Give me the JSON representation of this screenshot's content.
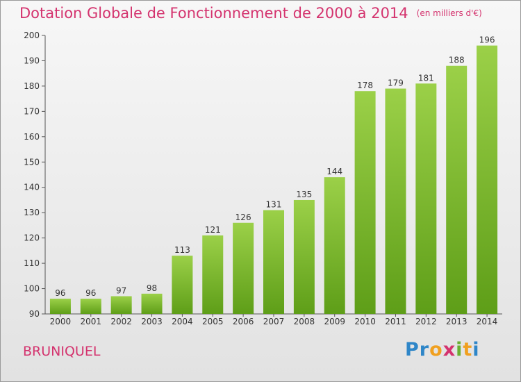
{
  "header": {
    "title": "Dotation Globale de Fonctionnement de 2000 à 2014",
    "subtitle": "(en milliers d'€)"
  },
  "footer": {
    "commune": "BRUNIQUEL",
    "logo": {
      "text": "Proxiti",
      "letters": [
        {
          "ch": "P",
          "color": "#2e86c8"
        },
        {
          "ch": "r",
          "color": "#2e86c8"
        },
        {
          "ch": "o",
          "color": "#f0a020"
        },
        {
          "ch": "x",
          "color": "#d4336e"
        },
        {
          "ch": "i",
          "color": "#68b030"
        },
        {
          "ch": "t",
          "color": "#f0a020"
        },
        {
          "ch": "i",
          "color": "#2e86c8"
        }
      ]
    }
  },
  "colors": {
    "bar_light": "#9bd048",
    "bar_dark": "#5e9e18",
    "title": "#d4336e"
  },
  "chart_data": {
    "type": "bar",
    "categories": [
      "2000",
      "2001",
      "2002",
      "2003",
      "2004",
      "2005",
      "2006",
      "2007",
      "2008",
      "2009",
      "2010",
      "2011",
      "2012",
      "2013",
      "2014"
    ],
    "values": [
      96,
      96,
      97,
      98,
      113,
      121,
      126,
      131,
      135,
      144,
      178,
      179,
      181,
      188,
      196
    ],
    "title": "Dotation Globale de Fonctionnement de 2000 à 2014",
    "subtitle": "(en milliers d'€)",
    "xlabel": "",
    "ylabel": "",
    "ylim": [
      90,
      200
    ],
    "yticks": [
      90,
      100,
      110,
      120,
      130,
      140,
      150,
      160,
      170,
      180,
      190,
      200
    ],
    "grid": false,
    "data_labels": true
  }
}
